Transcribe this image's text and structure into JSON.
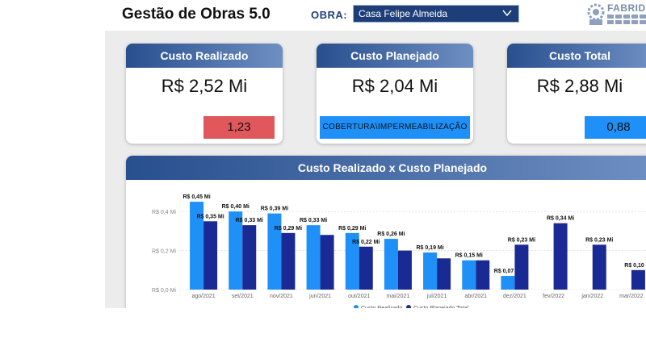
{
  "header": {
    "title": "Gestão de Obras 5.0",
    "obra_label": "OBRA:",
    "obra_value": "Casa Felipe Almeida",
    "logo_text": "FABRID"
  },
  "cards": {
    "realizado": {
      "title": "Custo Realizado",
      "value": "R$ 2,52 Mi",
      "badge": "1,23"
    },
    "planejado": {
      "title": "Custo Planejado",
      "value": "R$ 2,04 Mi",
      "badge": "COBERTURA\\IMPERMEABILIZAÇÃO"
    },
    "total": {
      "title": "Custo Total",
      "value": "R$ 2,88 Mi",
      "badge": "0,88"
    }
  },
  "colors": {
    "realizado": "#1e90f8",
    "planejado": "#1a2a94",
    "badge_red": "#e0575c",
    "header_dark": "#284f8e"
  },
  "chart_data": {
    "type": "bar",
    "title": "Custo Realizado x Custo Planejado",
    "categories": [
      "ago/2021",
      "set/2021",
      "nov/2021",
      "jun/2021",
      "out/2021",
      "mai/2021",
      "jul/2021",
      "abr/2021",
      "dez/2021",
      "fev/2022",
      "jan/2022",
      "mar/2022"
    ],
    "series": [
      {
        "name": "Custo Realizado",
        "values": [
          0.45,
          0.4,
          0.39,
          0.33,
          0.29,
          0.26,
          0.19,
          0.15,
          0.07,
          null,
          null,
          null
        ],
        "labels": [
          "R$ 0,45 Mi",
          "R$ 0,40 Mi",
          "R$ 0,39 Mi",
          "R$ 0,33 Mi",
          "R$ 0,29 Mi",
          "R$ 0,26 Mi",
          "R$ 0,19 Mi",
          "R$ 0,15 Mi",
          "R$ 0,07 Mi",
          "",
          "",
          ""
        ]
      },
      {
        "name": "Custo Planejado Total",
        "values": [
          0.35,
          0.33,
          0.29,
          0.28,
          0.22,
          0.2,
          0.16,
          0.15,
          0.23,
          0.34,
          0.23,
          0.1
        ],
        "labels": [
          "R$ 0,35 Mi",
          "R$ 0,33 Mi",
          "R$ 0,29 Mi",
          "",
          "R$ 0,22 Mi",
          "",
          "",
          "",
          "R$ 0,23 Mi",
          "R$ 0,34 Mi",
          "R$ 0,23 Mi",
          "R$ 0,10 Mi"
        ]
      }
    ],
    "yticks": [
      {
        "value": 0.0,
        "label": "R$ 0,0 Mi"
      },
      {
        "value": 0.2,
        "label": "R$ 0,2 Mi"
      },
      {
        "value": 0.4,
        "label": "R$ 0,4 Mi"
      }
    ],
    "ylim": [
      0,
      0.5
    ],
    "grid": true,
    "legend": "bottom"
  }
}
